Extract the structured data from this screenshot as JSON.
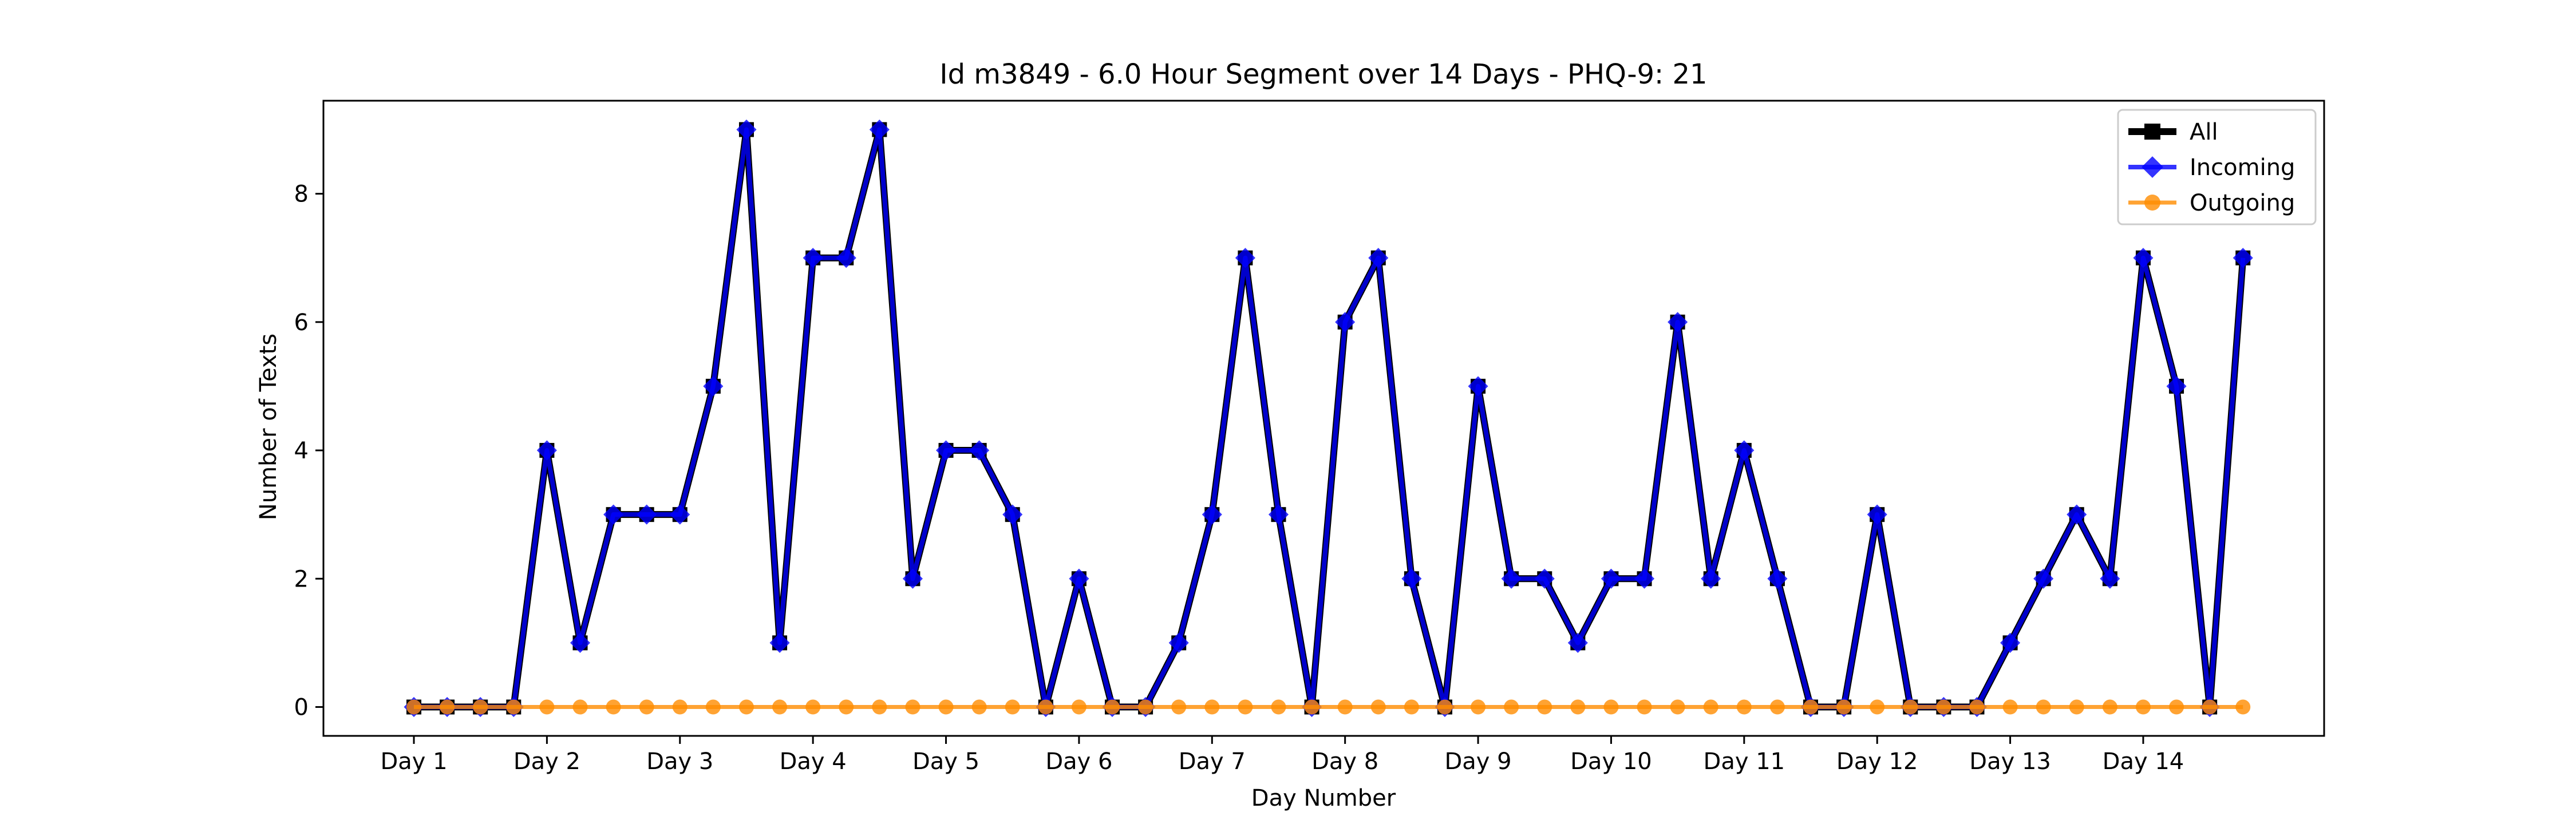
{
  "chart_data": {
    "type": "line",
    "title": "Id m3849 - 6.0 Hour Segment over 14 Days - PHQ-9: 21",
    "xlabel": "Day Number",
    "ylabel": "Number of Texts",
    "categories": [
      "Day 1",
      "Day 2",
      "Day 3",
      "Day 4",
      "Day 5",
      "Day 6",
      "Day 7",
      "Day 8",
      "Day 9",
      "Day 10",
      "Day 11",
      "Day 12",
      "Day 13",
      "Day 14"
    ],
    "yticks": [
      0,
      2,
      4,
      6,
      8
    ],
    "ylim": [
      -0.45,
      9.45
    ],
    "xlim": [
      -0.68,
      14.36
    ],
    "grid": false,
    "legend_position": "top-right",
    "x": [
      0,
      0.25,
      0.5,
      0.75,
      1,
      1.25,
      1.5,
      1.75,
      2,
      2.25,
      2.5,
      2.75,
      3,
      3.25,
      3.5,
      3.75,
      4,
      4.25,
      4.5,
      4.75,
      5,
      5.25,
      5.5,
      5.75,
      6,
      6.25,
      6.5,
      6.75,
      7,
      7.25,
      7.5,
      7.75,
      8,
      8.25,
      8.5,
      8.75,
      9,
      9.25,
      9.5,
      9.75,
      10,
      10.25,
      10.5,
      10.75,
      11,
      11.25,
      11.5,
      11.75,
      12,
      12.25,
      12.5,
      12.75,
      13,
      13.25,
      13.5,
      13.75
    ],
    "series": [
      {
        "name": "All",
        "color": "#000000",
        "marker": "square",
        "values": [
          0,
          0,
          0,
          0,
          4,
          1,
          3,
          3,
          3,
          5,
          9,
          1,
          7,
          7,
          9,
          2,
          4,
          4,
          3,
          0,
          2,
          0,
          0,
          1,
          3,
          7,
          3,
          0,
          6,
          7,
          2,
          0,
          5,
          2,
          2,
          1,
          2,
          2,
          6,
          2,
          4,
          2,
          0,
          0,
          3,
          0,
          0,
          0,
          1,
          2,
          3,
          2,
          7,
          5,
          0,
          7
        ]
      },
      {
        "name": "Incoming",
        "color": "#0000ff",
        "marker": "diamond",
        "values": [
          0,
          0,
          0,
          0,
          4,
          1,
          3,
          3,
          3,
          5,
          9,
          1,
          7,
          7,
          9,
          2,
          4,
          4,
          3,
          0,
          2,
          0,
          0,
          1,
          3,
          7,
          3,
          0,
          6,
          7,
          2,
          0,
          5,
          2,
          2,
          1,
          2,
          2,
          6,
          2,
          4,
          2,
          0,
          0,
          3,
          0,
          0,
          0,
          1,
          2,
          3,
          2,
          7,
          5,
          0,
          7
        ]
      },
      {
        "name": "Outgoing",
        "color": "#ff8c00",
        "marker": "circle",
        "values": [
          0,
          0,
          0,
          0,
          0,
          0,
          0,
          0,
          0,
          0,
          0,
          0,
          0,
          0,
          0,
          0,
          0,
          0,
          0,
          0,
          0,
          0,
          0,
          0,
          0,
          0,
          0,
          0,
          0,
          0,
          0,
          0,
          0,
          0,
          0,
          0,
          0,
          0,
          0,
          0,
          0,
          0,
          0,
          0,
          0,
          0,
          0,
          0,
          0,
          0,
          0,
          0,
          0,
          0,
          0,
          0
        ]
      }
    ]
  }
}
